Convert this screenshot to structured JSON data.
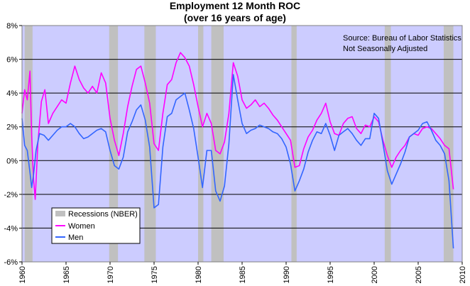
{
  "chart_data": {
    "type": "line",
    "title": "Employment 12 Month ROC",
    "subtitle": "(over 16 years of age)",
    "source_note": "Source: Bureau of Labor Statistics",
    "adjust_note": "Not Seasonally Adjusted",
    "xlim": [
      1960,
      2010
    ],
    "ylim": [
      -6,
      8
    ],
    "y_ticks": [
      -6,
      -4,
      -2,
      0,
      2,
      4,
      6,
      8
    ],
    "y_tick_labels": [
      "-6%",
      "-4%",
      "-2%",
      "0%",
      "2%",
      "4%",
      "6%",
      "8%"
    ],
    "x_ticks": [
      1960,
      1965,
      1970,
      1975,
      1980,
      1985,
      1990,
      1995,
      2000,
      2005,
      2010
    ],
    "x_tick_labels": [
      "1960",
      "1965",
      "1970",
      "1975",
      "1980",
      "1985",
      "1990",
      "1995",
      "2000",
      "2005",
      "2010"
    ],
    "grid": "horizontal",
    "legend_position": "bottom-left",
    "legend": {
      "recessions": "Recessions (NBER)",
      "women": "Women",
      "men": "Men"
    },
    "colors": {
      "plot_background": "#ccccff",
      "recession": "#c0c0c0",
      "women": "#ff00ff",
      "men": "#3366ff"
    },
    "recessions": [
      [
        1960.3,
        1961.2
      ],
      [
        1969.9,
        1970.9
      ],
      [
        1973.9,
        1975.2
      ],
      [
        1980.0,
        1980.6
      ],
      [
        1981.5,
        1982.9
      ],
      [
        1990.6,
        1991.2
      ],
      [
        2001.2,
        2001.9
      ],
      [
        2007.9,
        2009.0
      ]
    ],
    "series": [
      {
        "name": "Women",
        "points": [
          [
            1960.0,
            2.8
          ],
          [
            1960.3,
            4.2
          ],
          [
            1960.6,
            3.6
          ],
          [
            1960.9,
            5.3
          ],
          [
            1961.1,
            1.5
          ],
          [
            1961.3,
            -1.0
          ],
          [
            1961.5,
            -2.3
          ],
          [
            1961.8,
            1.0
          ],
          [
            1962.2,
            3.5
          ],
          [
            1962.6,
            4.2
          ],
          [
            1963.0,
            2.2
          ],
          [
            1963.5,
            2.8
          ],
          [
            1964.0,
            3.2
          ],
          [
            1964.5,
            3.6
          ],
          [
            1965.0,
            3.4
          ],
          [
            1965.5,
            4.6
          ],
          [
            1966.0,
            5.6
          ],
          [
            1966.5,
            4.8
          ],
          [
            1967.0,
            4.3
          ],
          [
            1967.5,
            4.0
          ],
          [
            1968.0,
            4.4
          ],
          [
            1968.5,
            4.0
          ],
          [
            1969.0,
            5.2
          ],
          [
            1969.5,
            4.6
          ],
          [
            1970.0,
            2.5
          ],
          [
            1970.5,
            1.2
          ],
          [
            1971.0,
            0.3
          ],
          [
            1971.5,
            1.6
          ],
          [
            1972.0,
            3.2
          ],
          [
            1972.5,
            4.4
          ],
          [
            1973.0,
            5.4
          ],
          [
            1973.5,
            5.6
          ],
          [
            1974.0,
            4.6
          ],
          [
            1974.5,
            3.4
          ],
          [
            1975.0,
            1.0
          ],
          [
            1975.5,
            0.6
          ],
          [
            1976.0,
            2.8
          ],
          [
            1976.5,
            4.5
          ],
          [
            1977.0,
            4.8
          ],
          [
            1977.5,
            5.8
          ],
          [
            1978.0,
            6.4
          ],
          [
            1978.5,
            6.1
          ],
          [
            1979.0,
            5.6
          ],
          [
            1979.5,
            4.5
          ],
          [
            1980.0,
            3.2
          ],
          [
            1980.5,
            2.0
          ],
          [
            1981.0,
            2.8
          ],
          [
            1981.5,
            2.2
          ],
          [
            1982.0,
            0.6
          ],
          [
            1982.5,
            0.4
          ],
          [
            1983.0,
            1.1
          ],
          [
            1983.5,
            2.8
          ],
          [
            1984.0,
            5.8
          ],
          [
            1984.5,
            5.0
          ],
          [
            1985.0,
            3.6
          ],
          [
            1985.5,
            3.1
          ],
          [
            1986.0,
            3.3
          ],
          [
            1986.5,
            3.6
          ],
          [
            1987.0,
            3.2
          ],
          [
            1987.5,
            3.4
          ],
          [
            1988.0,
            3.1
          ],
          [
            1988.5,
            2.7
          ],
          [
            1989.0,
            2.4
          ],
          [
            1989.5,
            2.0
          ],
          [
            1990.0,
            1.6
          ],
          [
            1990.5,
            1.2
          ],
          [
            1991.0,
            -0.4
          ],
          [
            1991.5,
            -0.3
          ],
          [
            1992.0,
            0.7
          ],
          [
            1992.5,
            1.4
          ],
          [
            1993.0,
            1.8
          ],
          [
            1993.5,
            2.4
          ],
          [
            1994.0,
            2.8
          ],
          [
            1994.5,
            3.4
          ],
          [
            1995.0,
            2.3
          ],
          [
            1995.5,
            1.6
          ],
          [
            1996.0,
            1.5
          ],
          [
            1996.5,
            2.2
          ],
          [
            1997.0,
            2.5
          ],
          [
            1997.5,
            2.6
          ],
          [
            1998.0,
            1.9
          ],
          [
            1998.5,
            1.6
          ],
          [
            1999.0,
            2.1
          ],
          [
            1999.5,
            2.0
          ],
          [
            2000.0,
            2.6
          ],
          [
            2000.5,
            2.3
          ],
          [
            2001.0,
            1.2
          ],
          [
            2001.5,
            0.3
          ],
          [
            2002.0,
            -0.4
          ],
          [
            2002.5,
            0.2
          ],
          [
            2003.0,
            0.6
          ],
          [
            2003.5,
            0.9
          ],
          [
            2004.0,
            1.4
          ],
          [
            2004.5,
            1.6
          ],
          [
            2005.0,
            1.5
          ],
          [
            2005.5,
            1.9
          ],
          [
            2006.0,
            2.0
          ],
          [
            2006.5,
            1.9
          ],
          [
            2007.0,
            1.6
          ],
          [
            2007.5,
            1.3
          ],
          [
            2008.0,
            0.9
          ],
          [
            2008.5,
            0.7
          ],
          [
            2009.0,
            -1.7
          ]
        ]
      },
      {
        "name": "Men",
        "points": [
          [
            1960.0,
            2.5
          ],
          [
            1960.3,
            0.9
          ],
          [
            1960.6,
            0.6
          ],
          [
            1960.9,
            -0.7
          ],
          [
            1961.1,
            -1.6
          ],
          [
            1961.3,
            -0.9
          ],
          [
            1961.6,
            0.6
          ],
          [
            1962.0,
            1.6
          ],
          [
            1962.5,
            1.5
          ],
          [
            1963.0,
            1.2
          ],
          [
            1963.5,
            1.5
          ],
          [
            1964.0,
            1.8
          ],
          [
            1964.5,
            2.0
          ],
          [
            1965.0,
            2.0
          ],
          [
            1965.5,
            2.2
          ],
          [
            1966.0,
            2.0
          ],
          [
            1966.5,
            1.6
          ],
          [
            1967.0,
            1.3
          ],
          [
            1967.5,
            1.4
          ],
          [
            1968.0,
            1.6
          ],
          [
            1968.5,
            1.8
          ],
          [
            1969.0,
            1.9
          ],
          [
            1969.5,
            1.7
          ],
          [
            1970.0,
            0.6
          ],
          [
            1970.5,
            -0.3
          ],
          [
            1971.0,
            -0.5
          ],
          [
            1971.5,
            0.2
          ],
          [
            1972.0,
            1.7
          ],
          [
            1972.5,
            2.3
          ],
          [
            1973.0,
            3.0
          ],
          [
            1973.5,
            3.3
          ],
          [
            1974.0,
            2.4
          ],
          [
            1974.5,
            0.8
          ],
          [
            1975.0,
            -2.8
          ],
          [
            1975.5,
            -2.6
          ],
          [
            1976.0,
            0.8
          ],
          [
            1976.5,
            2.6
          ],
          [
            1977.0,
            2.8
          ],
          [
            1977.5,
            3.6
          ],
          [
            1978.0,
            3.8
          ],
          [
            1978.5,
            4.0
          ],
          [
            1979.0,
            3.0
          ],
          [
            1979.5,
            1.9
          ],
          [
            1980.0,
            0.2
          ],
          [
            1980.5,
            -1.6
          ],
          [
            1981.0,
            0.6
          ],
          [
            1981.5,
            0.6
          ],
          [
            1982.0,
            -1.8
          ],
          [
            1982.5,
            -2.4
          ],
          [
            1983.0,
            -1.5
          ],
          [
            1983.5,
            1.0
          ],
          [
            1984.0,
            5.1
          ],
          [
            1984.5,
            3.6
          ],
          [
            1985.0,
            2.2
          ],
          [
            1985.5,
            1.6
          ],
          [
            1986.0,
            1.8
          ],
          [
            1986.5,
            1.9
          ],
          [
            1987.0,
            2.1
          ],
          [
            1987.5,
            2.0
          ],
          [
            1988.0,
            1.9
          ],
          [
            1988.5,
            1.7
          ],
          [
            1989.0,
            1.6
          ],
          [
            1989.5,
            1.3
          ],
          [
            1990.0,
            0.8
          ],
          [
            1990.5,
            -0.2
          ],
          [
            1991.0,
            -1.8
          ],
          [
            1991.5,
            -1.2
          ],
          [
            1992.0,
            -0.5
          ],
          [
            1992.5,
            0.5
          ],
          [
            1993.0,
            1.2
          ],
          [
            1993.5,
            1.7
          ],
          [
            1994.0,
            1.6
          ],
          [
            1994.5,
            2.2
          ],
          [
            1995.0,
            1.5
          ],
          [
            1995.5,
            0.6
          ],
          [
            1996.0,
            1.5
          ],
          [
            1996.5,
            1.7
          ],
          [
            1997.0,
            1.9
          ],
          [
            1997.5,
            1.6
          ],
          [
            1998.0,
            1.2
          ],
          [
            1998.5,
            0.9
          ],
          [
            1999.0,
            1.3
          ],
          [
            1999.5,
            1.3
          ],
          [
            2000.0,
            2.8
          ],
          [
            2000.5,
            2.5
          ],
          [
            2001.0,
            1.0
          ],
          [
            2001.5,
            -0.6
          ],
          [
            2002.0,
            -1.4
          ],
          [
            2002.5,
            -0.8
          ],
          [
            2003.0,
            -0.2
          ],
          [
            2003.5,
            0.5
          ],
          [
            2004.0,
            1.4
          ],
          [
            2004.5,
            1.6
          ],
          [
            2005.0,
            1.8
          ],
          [
            2005.5,
            2.2
          ],
          [
            2006.0,
            2.3
          ],
          [
            2006.5,
            1.8
          ],
          [
            2007.0,
            1.2
          ],
          [
            2007.5,
            0.9
          ],
          [
            2008.0,
            0.4
          ],
          [
            2008.5,
            -1.2
          ],
          [
            2009.0,
            -5.2
          ]
        ]
      }
    ]
  }
}
